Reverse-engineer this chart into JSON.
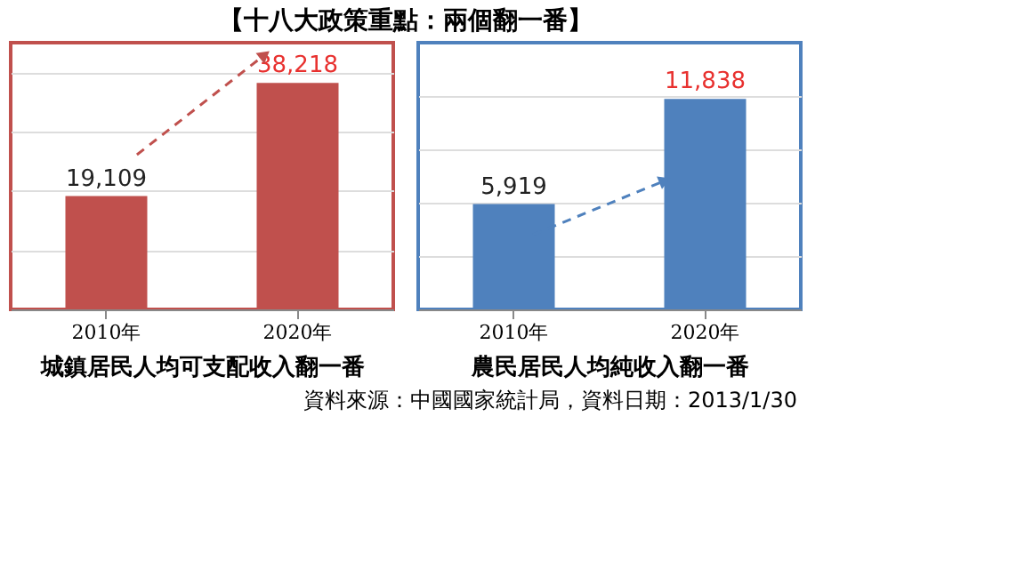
{
  "chart_data": [
    {
      "type": "bar",
      "title": "【十八大政策重點：兩個翻一番】",
      "categories": [
        "2010年",
        "2020年"
      ],
      "values": [
        19109,
        38218
      ],
      "value_labels": [
        "19,109",
        "38,218"
      ],
      "color": "#c0504d",
      "xlabel": "城鎮居民人均可支配收入翻一番",
      "ylim": [
        0,
        45000
      ],
      "yticks": [
        {
          "value": 10000,
          "label": null
        },
        {
          "value": 20000,
          "label": null
        },
        {
          "value": 30000,
          "label": null
        },
        {
          "value": 40000,
          "label": null
        }
      ],
      "grid": "y",
      "tick_labels": "x"
    },
    {
      "type": "bar",
      "categories": [
        "2010年",
        "2020年"
      ],
      "values": [
        5919,
        11838
      ],
      "value_labels": [
        "5,919",
        "11,838"
      ],
      "color": "#4f81bd",
      "xlabel": "農民居民人均純收入翻一番",
      "ylim": [
        0,
        15000
      ],
      "yticks": [
        {
          "value": 3000,
          "label": null
        },
        {
          "value": 6000,
          "label": null
        },
        {
          "value": 9000,
          "label": null
        },
        {
          "value": 12000,
          "label": null
        }
      ],
      "grid": "y",
      "tick_labels": "x",
      "annotations": [
        "資料來源：中國國家統計局，資料日期：2013/1/30"
      ]
    }
  ]
}
